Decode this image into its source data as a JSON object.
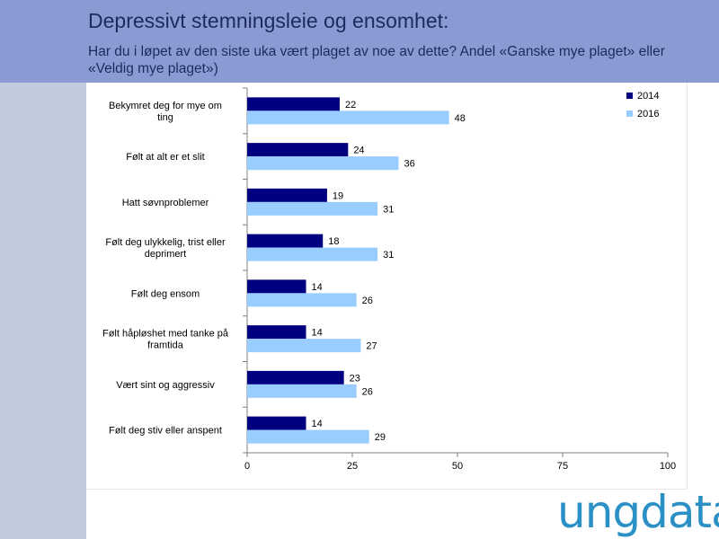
{
  "header": {
    "title": "Depressivt stemningsleie og ensomhet:",
    "subtitle": "Har du i løpet av den siste uka vært plaget av noe av dette? Andel «Ganske mye plaget» eller «Veldig mye plaget»)"
  },
  "logo": {
    "text": "ungdata"
  },
  "colors": {
    "series_2014": "#000080",
    "series_2016": "#99ccff",
    "header_bg": "#8a9bd4",
    "left_band": "#c2cade",
    "logo": "#2b90c6"
  },
  "chart_data": {
    "type": "bar",
    "orientation": "horizontal",
    "categories": [
      [
        "Bekymret deg for mye om",
        "ting"
      ],
      [
        "Følt at alt er et slit"
      ],
      [
        "Hatt søvnproblemer"
      ],
      [
        "Følt deg ulykkelig, trist eller",
        "deprimert"
      ],
      [
        "Følt deg ensom"
      ],
      [
        "Følt håpløshet med tanke på",
        "framtida"
      ],
      [
        "Vært sint og aggressiv"
      ],
      [
        "Følt deg stiv eller anspent"
      ]
    ],
    "series": [
      {
        "name": "2014",
        "color": "#000080",
        "values": [
          22,
          24,
          19,
          18,
          14,
          14,
          23,
          14
        ]
      },
      {
        "name": "2016",
        "color": "#99ccff",
        "values": [
          48,
          36,
          31,
          31,
          26,
          27,
          26,
          29
        ]
      }
    ],
    "xlim": [
      0,
      100
    ],
    "xticks": [
      "0",
      "25",
      "50",
      "75",
      "100"
    ],
    "xtick_values": [
      0,
      25,
      50,
      75,
      100
    ],
    "grid": false,
    "legend": "top-right",
    "data_labels": true
  }
}
